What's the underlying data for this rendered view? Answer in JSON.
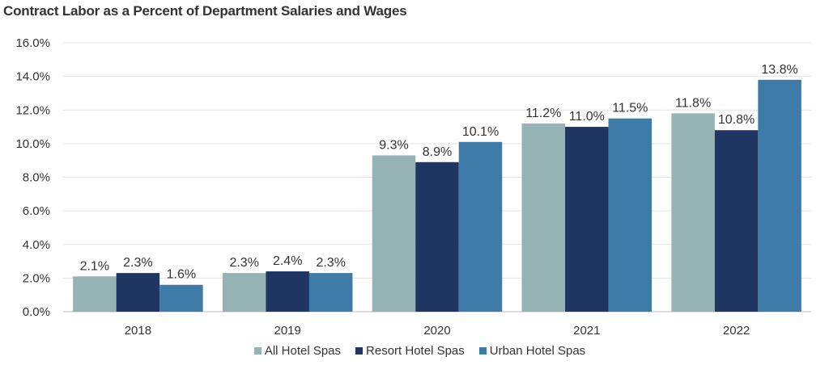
{
  "chart_data": {
    "type": "bar",
    "title": "Contract Labor as a Percent of Department Salaries and Wages",
    "categories": [
      "2018",
      "2019",
      "2020",
      "2021",
      "2022"
    ],
    "series": [
      {
        "name": "All Hotel Spas",
        "values": [
          2.1,
          2.3,
          9.3,
          11.2,
          11.8
        ],
        "labels": [
          "2.1%",
          "2.3%",
          "9.3%",
          "11.2%",
          "11.8%"
        ],
        "color": "#95b3b5"
      },
      {
        "name": "Resort Hotel Spas",
        "values": [
          2.3,
          2.4,
          8.9,
          11.0,
          10.8
        ],
        "labels": [
          "2.3%",
          "2.4%",
          "8.9%",
          "11.0%",
          "10.8%"
        ],
        "color": "#1f3562"
      },
      {
        "name": "Urban Hotel Spas",
        "values": [
          1.6,
          2.3,
          10.1,
          11.5,
          13.8
        ],
        "labels": [
          "1.6%",
          "2.3%",
          "10.1%",
          "11.5%",
          "13.8%"
        ],
        "color": "#3f7ba8"
      }
    ],
    "ylim": [
      0,
      16
    ],
    "yticks": [
      "0.0%",
      "2.0%",
      "4.0%",
      "6.0%",
      "8.0%",
      "10.0%",
      "12.0%",
      "14.0%",
      "16.0%"
    ],
    "grid": true,
    "legend": "bottom"
  }
}
